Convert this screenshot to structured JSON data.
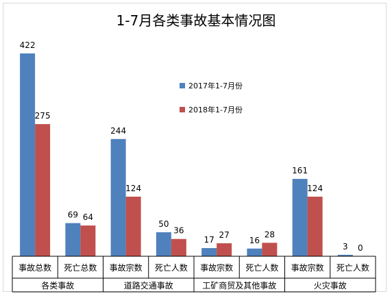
{
  "chart_data": {
    "type": "bar",
    "title": "1-7月各类事故基本情况图",
    "categories": [
      "事故总数",
      "死亡总数",
      "事故宗数",
      "死亡人数",
      "事故宗数",
      "死亡人数",
      "事故宗数",
      "死亡人数"
    ],
    "groups": [
      {
        "label": "各类事故",
        "span": 2
      },
      {
        "label": "道路交通事故",
        "span": 2
      },
      {
        "label": "工矿商贸及其他事故",
        "span": 2
      },
      {
        "label": "火灾事故",
        "span": 2
      }
    ],
    "series": [
      {
        "name": "2017年1-7月份",
        "color": "#4f81bd",
        "values": [
          422,
          69,
          244,
          50,
          17,
          16,
          161,
          3
        ]
      },
      {
        "name": "2018年1-7月份",
        "color": "#c0504d",
        "values": [
          275,
          64,
          124,
          36,
          27,
          28,
          124,
          0
        ]
      }
    ],
    "ylim": [
      0,
      430
    ],
    "grid": false,
    "legend_position": "center-right"
  }
}
